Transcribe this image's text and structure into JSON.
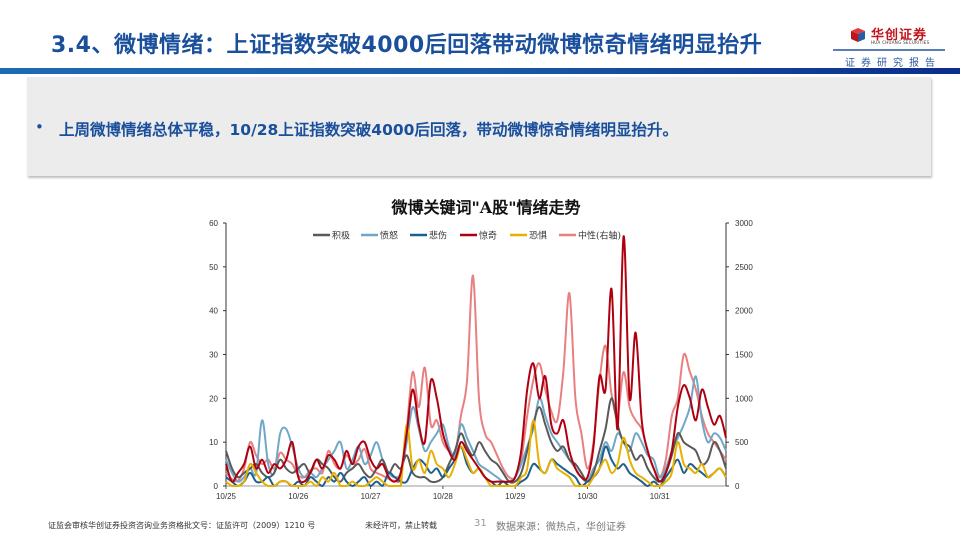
{
  "header": {
    "title": "3.4、微博情绪：上证指数突破4000后回落带动微博惊奇情绪明显抬升",
    "logo_name": "华创证券",
    "logo_en": "HUA CHUANG SECURITIES",
    "logo_sub": "证券研究报告"
  },
  "summary": {
    "bullet": "•",
    "text": "上周微博情绪总体平稳，10/28上证指数突破4000后回落，带动微博惊奇情绪明显抬升。"
  },
  "colors": {
    "title": "#1a4f9c",
    "accent_bar": "#0b2d8c",
    "积极": "#595959",
    "愤怒": "#6fa8c7",
    "悲伤": "#1f5f8b",
    "惊奇": "#b00010",
    "恐惧": "#e8b000",
    "中性": "#e88080"
  },
  "chart_data": {
    "type": "line",
    "title": "微博关键词\"A股\"情绪走势",
    "xlabel": "",
    "ylabel": "",
    "y_left": {
      "range": [
        0,
        60
      ],
      "ticks": [
        "0",
        "10",
        "20",
        "30",
        "40",
        "50",
        "60"
      ]
    },
    "y_right": {
      "range": [
        0,
        3000
      ],
      "ticks": [
        "0",
        "500",
        "1000",
        "1500",
        "2000",
        "2500",
        "3000"
      ]
    },
    "x_ticks": [
      "10/25",
      "10/26",
      "10/27",
      "10/28",
      "10/29",
      "10/30",
      "10/31"
    ],
    "grid": false,
    "legend_position": "top",
    "points_per_day": 12,
    "series": [
      {
        "name": "积极",
        "axis": "left",
        "values": [
          8,
          4,
          2,
          3,
          4,
          5,
          3,
          2,
          3,
          6,
          4,
          3,
          4,
          5,
          3,
          6,
          5,
          4,
          2,
          1,
          3,
          4,
          5,
          3,
          2,
          4,
          6,
          3,
          5,
          4,
          7,
          3,
          2,
          2,
          1,
          1,
          2,
          5,
          8,
          12,
          9,
          7,
          10,
          8,
          6,
          5,
          3,
          1,
          1,
          3,
          8,
          14,
          18,
          14,
          10,
          8,
          9,
          6,
          5,
          3,
          1,
          3,
          8,
          13,
          20,
          14,
          10,
          9,
          6,
          7,
          4,
          2,
          1,
          3,
          7,
          12,
          10,
          9,
          8,
          5,
          6,
          10,
          8,
          4
        ]
      },
      {
        "name": "愤怒",
        "axis": "left",
        "values": [
          6,
          3,
          1,
          2,
          4,
          3,
          15,
          5,
          3,
          12,
          13,
          9,
          4,
          2,
          3,
          2,
          4,
          6,
          8,
          10,
          4,
          6,
          9,
          5,
          7,
          10,
          6,
          3,
          2,
          3,
          10,
          18,
          13,
          8,
          10,
          12,
          14,
          9,
          7,
          14,
          11,
          8,
          5,
          4,
          3,
          2,
          1,
          1,
          2,
          5,
          9,
          13,
          20,
          16,
          12,
          10,
          8,
          6,
          4,
          2,
          1,
          4,
          6,
          10,
          8,
          12,
          10,
          8,
          12,
          10,
          7,
          6,
          2,
          4,
          8,
          11,
          14,
          18,
          25,
          15,
          10,
          12,
          11,
          8
        ]
      },
      {
        "name": "悲伤",
        "axis": "left",
        "values": [
          2,
          1,
          0,
          1,
          3,
          1,
          1,
          2,
          0,
          1,
          1,
          0,
          1,
          0,
          2,
          1,
          0,
          2,
          1,
          3,
          1,
          0,
          1,
          2,
          0,
          1,
          0,
          3,
          2,
          1,
          1,
          4,
          6,
          5,
          3,
          4,
          2,
          4,
          6,
          9,
          5,
          3,
          4,
          2,
          1,
          0,
          1,
          0,
          0,
          1,
          2,
          5,
          4,
          3,
          6,
          5,
          4,
          3,
          2,
          0,
          1,
          2,
          4,
          9,
          6,
          4,
          5,
          3,
          2,
          1,
          0,
          1,
          0,
          2,
          4,
          6,
          3,
          5,
          4,
          3,
          2,
          3,
          4,
          2
        ]
      },
      {
        "name": "惊奇",
        "axis": "left",
        "values": [
          5,
          1,
          3,
          5,
          9,
          4,
          6,
          3,
          5,
          4,
          6,
          10,
          2,
          1,
          3,
          6,
          4,
          7,
          6,
          4,
          8,
          5,
          9,
          10,
          6,
          4,
          5,
          2,
          1,
          3,
          12,
          22,
          14,
          10,
          24,
          20,
          12,
          8,
          6,
          10,
          8,
          6,
          4,
          2,
          1,
          1,
          1,
          1,
          2,
          8,
          22,
          28,
          20,
          25,
          14,
          12,
          15,
          8,
          4,
          2,
          2,
          9,
          25,
          22,
          45,
          13,
          57,
          20,
          35,
          15,
          8,
          4,
          1,
          3,
          8,
          18,
          23,
          20,
          15,
          22,
          18,
          14,
          16,
          11
        ]
      },
      {
        "name": "恐惧",
        "axis": "left",
        "values": [
          1,
          0,
          0,
          1,
          5,
          3,
          1,
          0,
          0,
          1,
          1,
          0,
          0,
          0,
          1,
          0,
          2,
          1,
          3,
          0,
          0,
          1,
          0,
          0,
          1,
          2,
          1,
          0,
          0,
          0,
          14,
          4,
          6,
          3,
          8,
          5,
          4,
          2,
          5,
          9,
          6,
          3,
          4,
          2,
          0,
          0,
          0,
          0,
          0,
          2,
          4,
          15,
          5,
          3,
          6,
          4,
          3,
          2,
          0,
          0,
          0,
          2,
          4,
          6,
          3,
          5,
          11,
          6,
          3,
          2,
          1,
          0,
          0,
          1,
          3,
          10,
          5,
          4,
          3,
          5,
          2,
          3,
          4,
          2
        ]
      },
      {
        "name": "中性(右轴)",
        "axis": "right",
        "values": [
          150,
          80,
          60,
          200,
          500,
          350,
          250,
          300,
          200,
          380,
          300,
          250,
          120,
          100,
          180,
          200,
          150,
          400,
          250,
          200,
          350,
          250,
          300,
          420,
          200,
          150,
          120,
          80,
          60,
          100,
          650,
          1300,
          900,
          1350,
          700,
          750,
          500,
          400,
          350,
          800,
          1200,
          2400,
          1000,
          600,
          500,
          350,
          200,
          100,
          100,
          300,
          800,
          1200,
          1400,
          1100,
          850,
          750,
          1300,
          2200,
          1000,
          600,
          200,
          500,
          1200,
          1600,
          1050,
          800,
          1300,
          900,
          750,
          650,
          400,
          200,
          100,
          300,
          800,
          1000,
          1500,
          1300,
          1100,
          800,
          600,
          500,
          400,
          300
        ]
      }
    ]
  },
  "footer": {
    "license": "证监会审核华创证券投资咨询业务资格批文号：证监许可（2009）1210 号",
    "notice": "未经许可，禁止转载",
    "page": "31",
    "source": "数据来源：微热点，华创证券"
  }
}
